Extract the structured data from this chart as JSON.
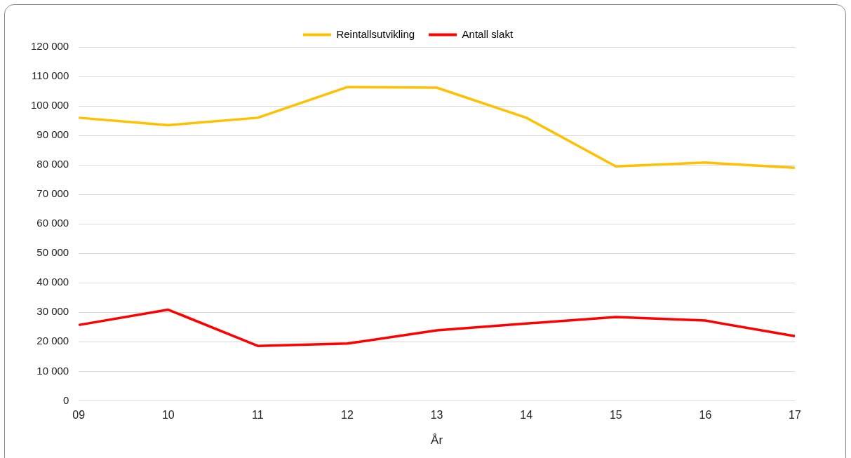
{
  "chart_data": {
    "type": "line",
    "xlabel": "År",
    "categories": [
      "09",
      "10",
      "11",
      "12",
      "13",
      "14",
      "15",
      "16",
      "17"
    ],
    "series": [
      {
        "name": "Reintallsutvikling",
        "color": "#ffc000",
        "values": [
          96000,
          93500,
          96000,
          106400,
          106200,
          96000,
          79500,
          80800,
          79000
        ]
      },
      {
        "name": "Antall slakt",
        "color": "#ff0000",
        "values": [
          25700,
          30900,
          18600,
          19400,
          23900,
          26200,
          28400,
          27200,
          21900
        ]
      }
    ],
    "ylim": [
      0,
      120000
    ],
    "yticks": [
      {
        "value": 0,
        "label": "0"
      },
      {
        "value": 10000,
        "label": "10 000"
      },
      {
        "value": 20000,
        "label": "20 000"
      },
      {
        "value": 30000,
        "label": "30 000"
      },
      {
        "value": 40000,
        "label": "40 000"
      },
      {
        "value": 50000,
        "label": "50 000"
      },
      {
        "value": 60000,
        "label": "60 000"
      },
      {
        "value": 70000,
        "label": "70 000"
      },
      {
        "value": 80000,
        "label": "80 000"
      },
      {
        "value": 90000,
        "label": "90 000"
      },
      {
        "value": 100000,
        "label": "100 000"
      },
      {
        "value": 110000,
        "label": "110 000"
      },
      {
        "value": 120000,
        "label": "120 000"
      }
    ],
    "grid": "y",
    "legend": "top",
    "marker": "none",
    "line_style": "solid"
  }
}
